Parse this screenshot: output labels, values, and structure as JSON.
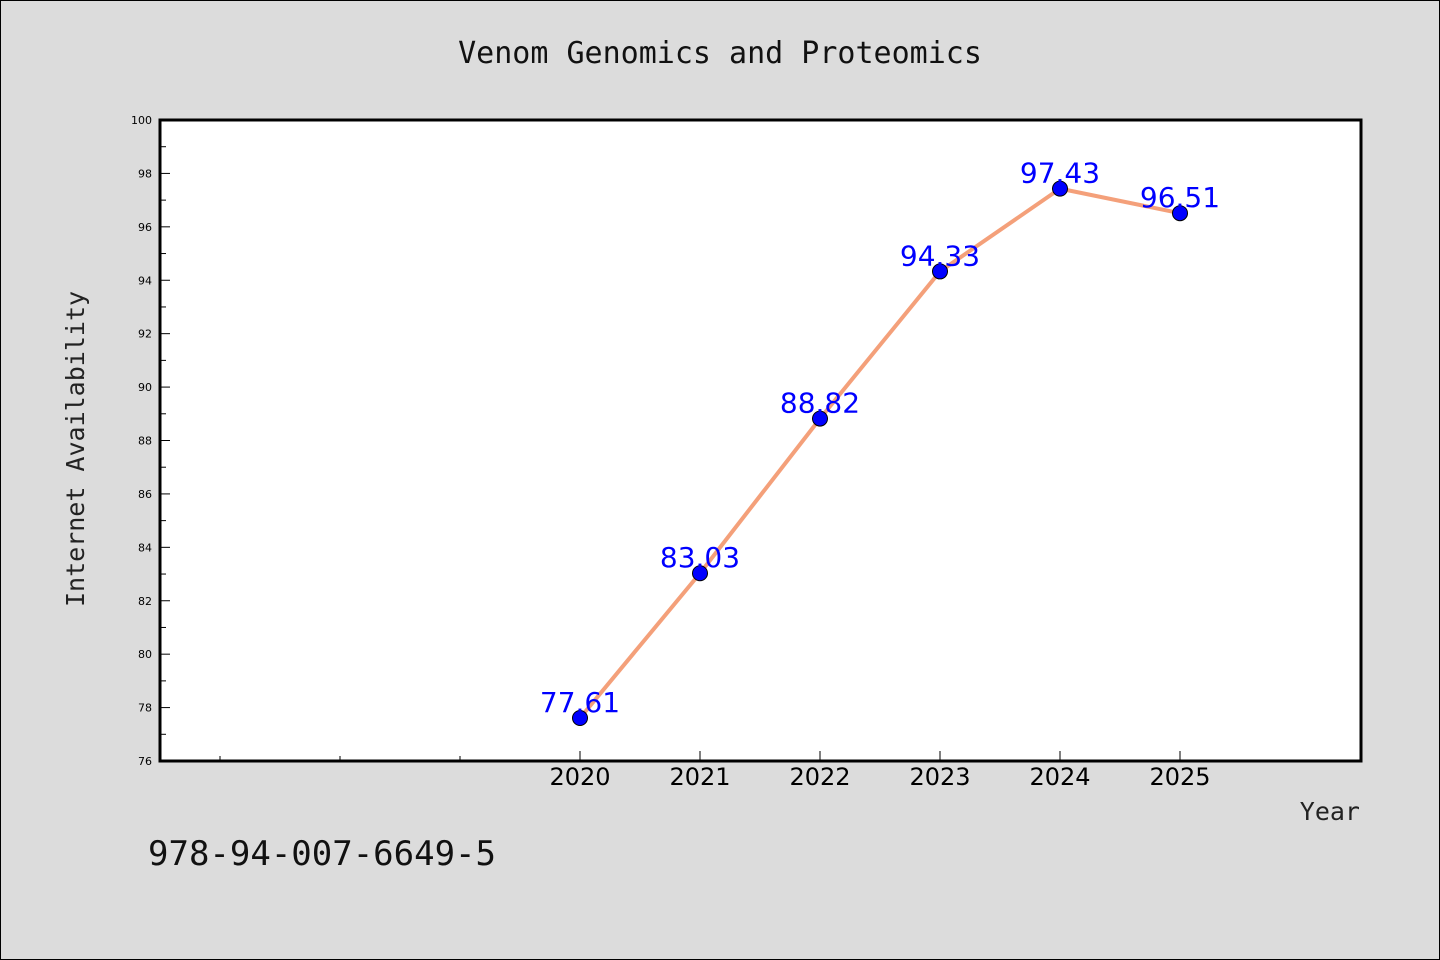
{
  "chart_data": {
    "type": "line",
    "title": "Venom Genomics and Proteomics",
    "xlabel": "Year",
    "ylabel": "Internet Availability",
    "categories": [
      "2020",
      "2021",
      "2022",
      "2023",
      "2024",
      "2025"
    ],
    "series": [
      {
        "values": [
          77.61,
          83.03,
          88.82,
          94.33,
          97.43,
          96.51
        ],
        "labels": [
          "77.61",
          "83.03",
          "88.82",
          "94.33",
          "97.43",
          "96.51"
        ],
        "line_color": "#f4a07a",
        "marker_color": "#0000ff"
      }
    ],
    "ylim": [
      76,
      100
    ],
    "yticks": [
      "76",
      "78",
      "80",
      "82",
      "84",
      "86",
      "88",
      "90",
      "92",
      "94",
      "96",
      "98",
      "100"
    ],
    "grid": false,
    "legend": "none"
  },
  "footer": {
    "code": "978-94-007-6649-5"
  }
}
